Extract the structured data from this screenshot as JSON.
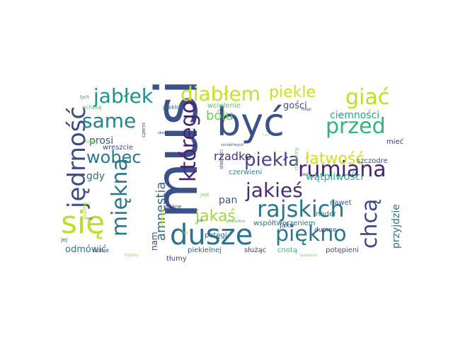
{
  "word_cloud": {
    "words": [
      {
        "text": "musi",
        "color": "#3b518b"
      },
      {
        "text": "być",
        "color": "#3b518b"
      },
      {
        "text": "się",
        "color": "#bddf26"
      },
      {
        "text": "dusze",
        "color": "#2c728e"
      },
      {
        "text": "jędrność",
        "color": "#3e4a89"
      },
      {
        "text": "miękną",
        "color": "#2a788e"
      },
      {
        "text": "którego",
        "color": "#482173"
      },
      {
        "text": "rajskich",
        "color": "#2a788e"
      },
      {
        "text": "rumiana",
        "color": "#482475"
      },
      {
        "text": "jabłek",
        "color": "#20928c"
      },
      {
        "text": "diabłem",
        "color": "#cae11f"
      },
      {
        "text": "giać",
        "color": "#bddf26"
      },
      {
        "text": "przed",
        "color": "#2fb47c"
      },
      {
        "text": "piękno",
        "color": "#2a788e"
      },
      {
        "text": "jakieś",
        "color": "#472c7a"
      },
      {
        "text": "chcą",
        "color": "#3e4989"
      },
      {
        "text": "same",
        "color": "#26828e"
      },
      {
        "text": "wobec",
        "color": "#2a788e"
      },
      {
        "text": "piekle",
        "color": "#cde11d"
      },
      {
        "text": "piekła",
        "color": "#3f4788"
      },
      {
        "text": "łatwość",
        "color": "#d0e11c"
      },
      {
        "text": "jakaś",
        "color": "#a2da37"
      },
      {
        "text": "amnestia",
        "color": "#31688e"
      },
      {
        "text": "bólu",
        "color": "#6ccd5a"
      },
      {
        "text": "rzadko",
        "color": "#46337f"
      },
      {
        "text": "wątpliwości",
        "color": "#27ad81"
      },
      {
        "text": "ciemności",
        "color": "#21a685"
      },
      {
        "text": "przyjdzie",
        "color": "#2b748e"
      },
      {
        "text": "prosi",
        "color": "#38598c"
      },
      {
        "text": "gdy",
        "color": "#2e6e8e"
      },
      {
        "text": "pan",
        "color": "#3b528b"
      },
      {
        "text": "odmówić",
        "color": "#2a768e"
      },
      {
        "text": "gości",
        "color": "#3d4e8a"
      },
      {
        "text": "nam",
        "color": "#3f4889"
      },
      {
        "text": "wcielenie",
        "color": "#5cc863"
      },
      {
        "text": "czerwieni",
        "color": "#24878e"
      },
      {
        "text": "współtworzeniem",
        "color": "#2c718e"
      },
      {
        "text": "piekielnej",
        "color": "#355f8d"
      },
      {
        "text": "służąc",
        "color": "#453882"
      },
      {
        "text": "cnotą",
        "color": "#38b977"
      },
      {
        "text": "potępieni",
        "color": "#3f4788"
      },
      {
        "text": "nawet",
        "color": "#32658e"
      },
      {
        "text": "potęgi",
        "color": "#33638d"
      },
      {
        "text": "tłumy",
        "color": "#433d84"
      },
      {
        "text": "dumne",
        "color": "#3e4c8a"
      },
      {
        "text": "jako",
        "color": "#3c508b"
      },
      {
        "text": "nader",
        "color": "#27808e"
      },
      {
        "text": "szczodre",
        "color": "#3c4f8a"
      },
      {
        "text": "mieć",
        "color": "#46307e"
      },
      {
        "text": "wreszcie",
        "color": "#3b528b"
      },
      {
        "text": "ochotą",
        "color": "#52c569"
      },
      {
        "text": "piekło",
        "color": "#2e6e8e"
      },
      {
        "text": "czerni",
        "color": "#453781"
      },
      {
        "text": "słabości",
        "color": "#3c4f8a"
      },
      {
        "text": "chwalimy",
        "color": "#7ad151"
      },
      {
        "text": "dobre",
        "color": "#3c4f8a"
      },
      {
        "text": "piękne",
        "color": "#46327e"
      },
      {
        "text": "rozkazy",
        "color": "#d8e219"
      },
      {
        "text": "jej",
        "color": "#33638d"
      },
      {
        "text": "mądre",
        "color": "#a2da37"
      },
      {
        "text": "łaskę",
        "color": "#86d549"
      },
      {
        "text": "jest",
        "color": "#6ece58"
      },
      {
        "text": "bez",
        "color": "#3e4989"
      },
      {
        "text": "bysmy",
        "color": "#98d83e"
      },
      {
        "text": "tych",
        "color": "#2a788e"
      },
      {
        "text": "skazy",
        "color": "#3f4788"
      },
      {
        "text": "szczęśliwych",
        "color": "#3b528b"
      },
      {
        "text": "mogli",
        "color": "#3e4c8a"
      },
      {
        "text": "nas",
        "color": "#3e4a89"
      },
      {
        "text": "kpić",
        "color": "#a8db34"
      },
      {
        "text": "tyiu",
        "color": "#b5de2b"
      },
      {
        "text": "tak",
        "color": "#3b528b"
      },
      {
        "text": "piekielnie",
        "color": "#7ad151"
      },
      {
        "text": "pieksoflów",
        "color": "#4ac16d"
      },
      {
        "text": "nas",
        "color": "#bddf26"
      }
    ]
  }
}
